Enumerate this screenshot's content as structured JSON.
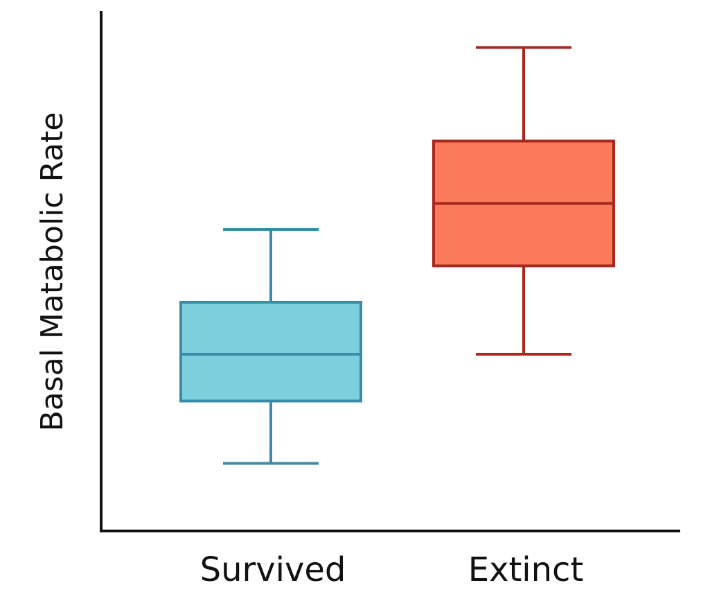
{
  "chart_data": {
    "type": "box",
    "ylabel": "Basal Matabolic Rate",
    "xlabel": "",
    "title": "",
    "ylim": [
      0,
      10
    ],
    "grid": false,
    "categories": [
      "Survived",
      "Extinct"
    ],
    "boxes": [
      {
        "category": "Survived",
        "whisker_low": 1.3,
        "q1": 2.5,
        "median": 3.4,
        "q3": 4.4,
        "whisker_high": 5.8,
        "fill": "#7ECFDE",
        "stroke": "#3A8CA6"
      },
      {
        "category": "Extinct",
        "whisker_low": 3.4,
        "q1": 5.1,
        "median": 6.3,
        "q3": 7.5,
        "whisker_high": 9.3,
        "fill": "#F97B5C",
        "stroke": "#A8271F"
      }
    ]
  }
}
